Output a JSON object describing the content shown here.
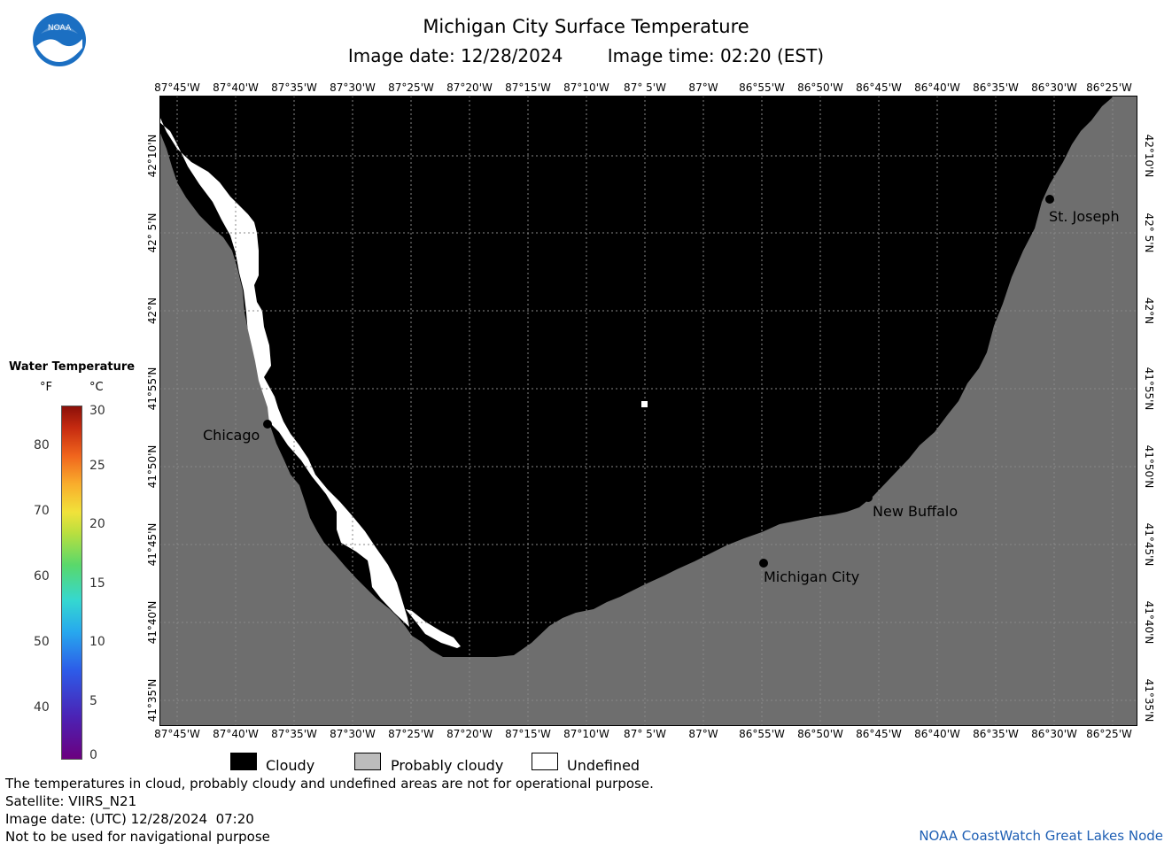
{
  "title": "Michigan City Surface Temperature",
  "image_date": "Image date: 12/28/2024",
  "image_time": "Image time: 02:20 (EST)",
  "logo_text": "NOAA",
  "longitude_ticks": [
    "87°45'W",
    "87°40'W",
    "87°35'W",
    "87°30'W",
    "87°25'W",
    "87°20'W",
    "87°15'W",
    "87°10'W",
    "87° 5'W",
    "87°W",
    "86°55'W",
    "86°50'W",
    "86°45'W",
    "86°40'W",
    "86°35'W",
    "86°30'W",
    "86°25'W"
  ],
  "latitude_ticks": [
    "42°10'N",
    "42° 5'N",
    "42°N",
    "41°55'N",
    "41°50'N",
    "41°45'N",
    "41°40'N",
    "41°35'N"
  ],
  "cities": {
    "chicago": "Chicago",
    "st_joseph": "St. Joseph",
    "new_buffalo": "New Buffalo",
    "michigan_city": "Michigan City"
  },
  "colorbar": {
    "title": "Water Temperature",
    "unit_f": "°F",
    "unit_c": "°C",
    "f_ticks": [
      "80",
      "70",
      "60",
      "50",
      "40"
    ],
    "c_ticks": [
      "30",
      "25",
      "20",
      "15",
      "10",
      "5",
      "0"
    ],
    "colors": [
      "#6b007f",
      "#2d5be8",
      "#35d8d0",
      "#59d86b",
      "#f1e23a",
      "#f0651d",
      "#8b1009"
    ]
  },
  "legend": {
    "cloudy": "Cloudy",
    "probably_cloudy": "Probably cloudy",
    "undefined": "Undefined",
    "cloudy_color": "#000000",
    "probably_cloudy_color": "#bcbcbc",
    "undefined_color": "#ffffff",
    "land_color": "#6e6e6e"
  },
  "footer": {
    "disclaimer": "The temperatures in cloud, probably cloudy and undefined areas are not for operational purpose.",
    "satellite": "Satellite: VIIRS_N21",
    "utc_date": "Image date: (UTC) 12/28/2024  07:20",
    "nav": "Not to be used for navigational purpose",
    "credit": "NOAA CoastWatch Great Lakes Node"
  }
}
